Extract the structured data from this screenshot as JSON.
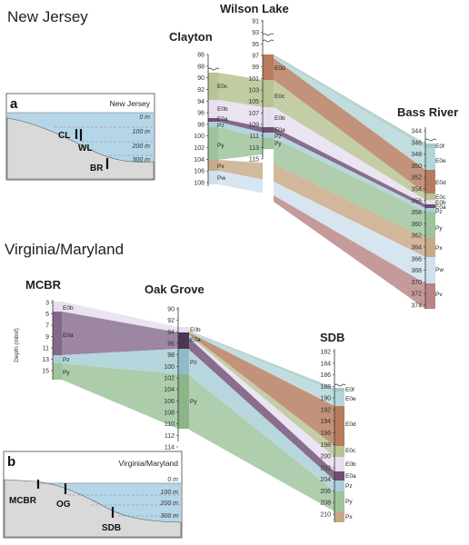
{
  "regions": {
    "nj": "New Jersey",
    "va": "Virginia/Maryland"
  },
  "colors": {
    "E0f": "#a9c9c6",
    "E0e": "#b3d6da",
    "E0d": "#b77b5e",
    "E0c": "#b7c493",
    "E0b": "#e7dff0",
    "E0a": "#6e4e75",
    "Pz": "#a9cfd6",
    "Py": "#9ec49c",
    "Px": "#c8a986",
    "Pw": "#cfe0ef",
    "Pv": "#b98585",
    "water": "#b5d6e8",
    "land": "#d9d9d9"
  },
  "nj": {
    "clayton": {
      "name": "Clayton",
      "ticks": [
        "86",
        "88",
        "90",
        "92",
        "94",
        "96",
        "98",
        "100",
        "102",
        "104",
        "106",
        "108"
      ],
      "units": [
        "E0c",
        "E0b",
        "E0a",
        "Pz",
        "Py",
        "Px",
        "Pw"
      ]
    },
    "wilson": {
      "name": "Wilson Lake",
      "ticks": [
        "91",
        "93",
        "95",
        "97",
        "99",
        "101",
        "103",
        "105",
        "107",
        "109",
        "111",
        "113",
        "115"
      ],
      "units": [
        "E0d",
        "E0c",
        "E0b",
        "E0a",
        "Pz",
        "Py"
      ]
    },
    "bass": {
      "name": "Bass River",
      "ticks": [
        "344",
        "346",
        "348",
        "350",
        "352",
        "354",
        "356",
        "358",
        "360",
        "362",
        "364",
        "366",
        "368",
        "370",
        "372",
        "374"
      ],
      "units": [
        "E0f",
        "E0e",
        "E0d",
        "E0c",
        "E0b",
        "E0a",
        "Pz",
        "Py",
        "Px",
        "Pw",
        "Pv"
      ]
    }
  },
  "va": {
    "mcbr": {
      "name": "MCBR",
      "ticks": [
        "3",
        "5",
        "7",
        "9",
        "11",
        "13",
        "15"
      ],
      "units": [
        "E0b",
        "E0a",
        "Pz",
        "Py"
      ],
      "axis_title": "Depth (mbsf)"
    },
    "oak": {
      "name": "Oak Grove",
      "ticks": [
        "90",
        "92",
        "94",
        "96",
        "98",
        "100",
        "102",
        "104",
        "106",
        "108",
        "110",
        "112",
        "114"
      ],
      "units": [
        "E0b",
        "E0a",
        "Pz",
        "Py"
      ]
    },
    "sdb": {
      "name": "SDB",
      "ticks": [
        "182",
        "184",
        "186",
        "188",
        "190",
        "192",
        "194",
        "196",
        "198",
        "200",
        "202",
        "204",
        "206",
        "208",
        "210"
      ],
      "units": [
        "E0f",
        "E0e",
        "E0d",
        "E0c",
        "E0b",
        "E0a",
        "Pz",
        "Py",
        "Px"
      ]
    }
  },
  "inset_a": {
    "letter": "a",
    "title": "New Jersey",
    "depths": [
      "0 m",
      "100 m",
      "200 m",
      "300 m"
    ],
    "wells": [
      "CL",
      "WL",
      "BR"
    ]
  },
  "inset_b": {
    "letter": "b",
    "title": "Virginia/Maryland",
    "depths": [
      "0 m",
      "100 m",
      "200 m",
      "300 m"
    ],
    "wells": [
      "MCBR",
      "OG",
      "SDB"
    ]
  }
}
